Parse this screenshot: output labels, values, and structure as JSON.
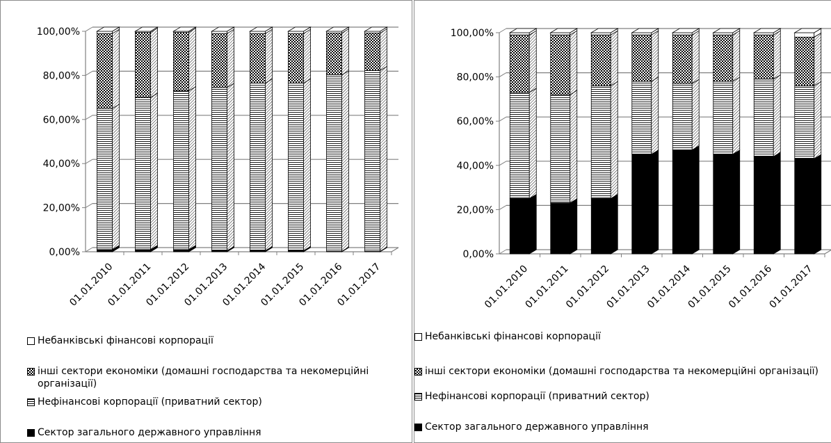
{
  "legend": {
    "nonbank": "Небанківські фінансові корпорації",
    "other": "інші сектори економіки (домашні господарства та некомерційні організації)",
    "nonfin": "Нефінансові корпорації (приватний сектор)",
    "gov": "Сектор загального державного управління"
  },
  "colors": {
    "gov": "#000000",
    "border": "#000000",
    "grid": "#808080"
  },
  "chart_data": [
    {
      "type": "bar",
      "stacked": true,
      "categories": [
        "01.01.2010",
        "01.01.2011",
        "01.01.2012",
        "01.01.2013",
        "01.01.2014",
        "01.01.2015",
        "01.01.2016",
        "01.01.2017"
      ],
      "ylim": [
        0,
        100
      ],
      "yticks": [
        "0,00%",
        "20,00%",
        "40,00%",
        "60,00%",
        "80,00%",
        "100,00%"
      ],
      "series": [
        {
          "key": "gov",
          "values": [
            1,
            1,
            1,
            0.5,
            0.5,
            0.5,
            0.2,
            0.2
          ]
        },
        {
          "key": "nonfin",
          "values": [
            64,
            69,
            72,
            74,
            76,
            76,
            80,
            82
          ]
        },
        {
          "key": "other",
          "values": [
            34,
            29.5,
            26.5,
            24.5,
            22.5,
            22.5,
            19,
            17
          ]
        },
        {
          "key": "nonbank",
          "values": [
            1,
            0.5,
            0.5,
            1,
            1,
            1,
            0.8,
            0.8
          ]
        }
      ]
    },
    {
      "type": "bar",
      "stacked": true,
      "categories": [
        "01.01.2010",
        "01.01.2011",
        "01.01.2012",
        "01.01.2013",
        "01.01.2014",
        "01.01.2015",
        "01.01.2016",
        "01.01.2017"
      ],
      "ylim": [
        0,
        100
      ],
      "yticks": [
        "0,00%",
        "20,00%",
        "40,00%",
        "60,00%",
        "80,00%",
        "100,00%"
      ],
      "series": [
        {
          "key": "gov",
          "values": [
            25,
            23,
            25,
            45,
            47,
            45,
            44,
            43
          ]
        },
        {
          "key": "nonfin",
          "values": [
            48,
            49,
            51,
            33,
            30,
            33,
            35,
            33
          ]
        },
        {
          "key": "other",
          "values": [
            26,
            27,
            23,
            21,
            22,
            21,
            20,
            22
          ]
        },
        {
          "key": "nonbank",
          "values": [
            1,
            1,
            1,
            1,
            1,
            1,
            1,
            2
          ]
        }
      ]
    }
  ]
}
